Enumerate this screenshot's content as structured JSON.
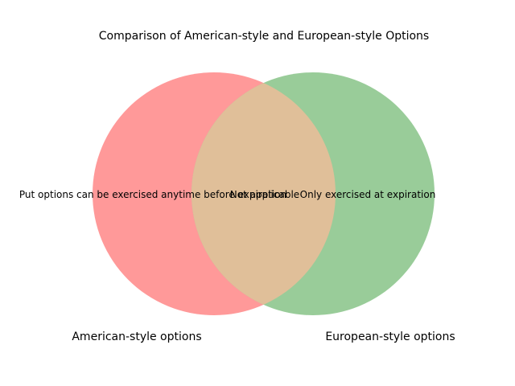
{
  "title": "Comparison of American-style and European-style Options",
  "sets": [
    {
      "name": "American-style options",
      "color": "#ff9999"
    },
    {
      "name": "European-style options",
      "color": "#99cc99"
    }
  ],
  "overlap_color": "#e0bf99",
  "regions": {
    "american_only": "Put options can be exercised anytime before expiration",
    "overlap": "Not applicable",
    "european_only": "Only exercised at expiration"
  }
}
